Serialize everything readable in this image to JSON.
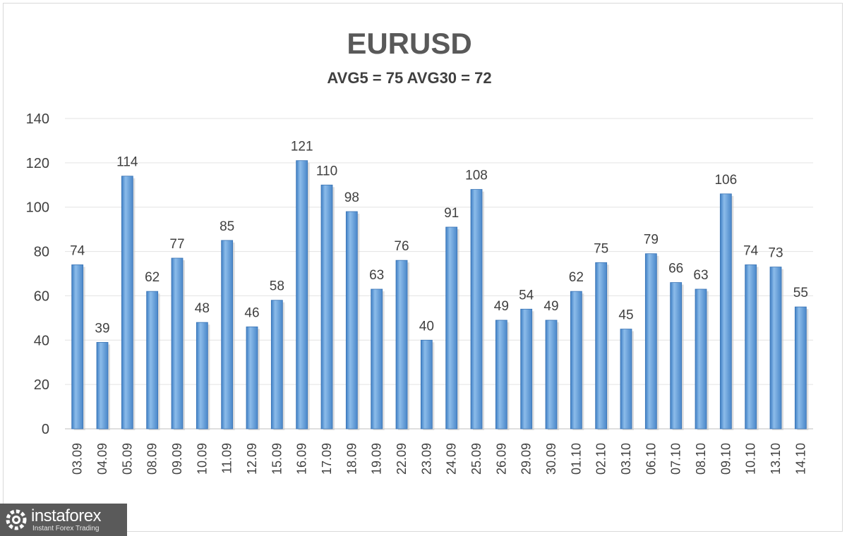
{
  "chart_data": {
    "type": "bar",
    "title": "EURUSD",
    "subtitle": "AVG5 = 75 AVG30 = 72",
    "categories": [
      "03.09",
      "04.09",
      "05.09",
      "08.09",
      "09.09",
      "10.09",
      "11.09",
      "12.09",
      "15.09",
      "16.09",
      "17.09",
      "18.09",
      "19.09",
      "22.09",
      "23.09",
      "24.09",
      "25.09",
      "26.09",
      "29.09",
      "30.09",
      "01.10",
      "02.10",
      "03.10",
      "06.10",
      "07.10",
      "08.10",
      "09.10",
      "10.10",
      "13.10",
      "14.10"
    ],
    "values": [
      74,
      39,
      114,
      62,
      77,
      48,
      85,
      46,
      58,
      121,
      110,
      98,
      63,
      76,
      40,
      91,
      108,
      49,
      54,
      49,
      62,
      75,
      45,
      79,
      66,
      63,
      106,
      74,
      73,
      55
    ],
    "yticks": [
      0,
      20,
      40,
      60,
      80,
      100,
      120,
      140
    ],
    "ylim": [
      0,
      140
    ],
    "grid": true,
    "bar_color": "#5b9bd5",
    "data_labels": true
  },
  "branding": {
    "logo_name": "instaforex",
    "logo_tagline": "Instant Forex Trading"
  }
}
